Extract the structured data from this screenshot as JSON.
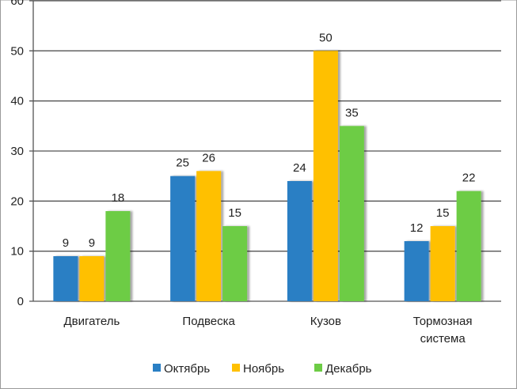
{
  "chart_data": {
    "type": "bar",
    "categories": [
      [
        "Двигатель"
      ],
      [
        "Подвеска"
      ],
      [
        "Кузов"
      ],
      [
        "Тормозная",
        "система"
      ]
    ],
    "series": [
      {
        "name": "Октябрь",
        "values": [
          9,
          25,
          24,
          12
        ],
        "color": "#2A7FC4"
      },
      {
        "name": "Ноябрь",
        "values": [
          9,
          26,
          50,
          15
        ],
        "color": "#FFC000"
      },
      {
        "name": "Декабрь",
        "values": [
          18,
          15,
          35,
          22
        ],
        "color": "#6DCC45"
      }
    ],
    "ylim": [
      0,
      60
    ],
    "yticks": [
      0,
      10,
      20,
      30,
      40,
      50,
      60
    ],
    "grid": true,
    "legend_position": "bottom"
  }
}
